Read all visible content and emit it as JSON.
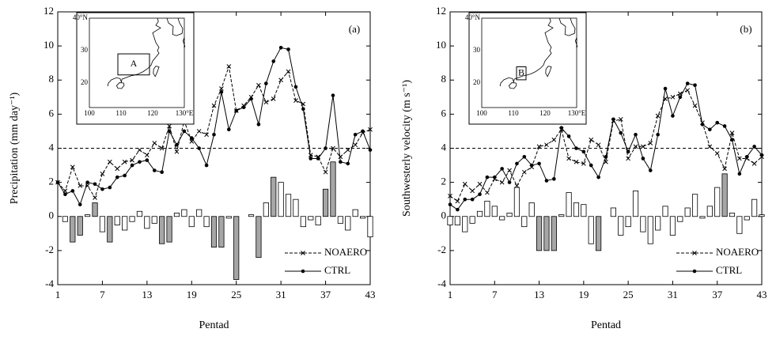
{
  "chart_data": [
    {
      "type": "line_bar",
      "panel_label": "(a)",
      "ylabel": "Precipitation  (mm day⁻¹)",
      "xlabel": "Pentad",
      "xlim": [
        1,
        43
      ],
      "xticks": [
        1,
        7,
        13,
        19,
        25,
        31,
        37,
        43
      ],
      "ylim": [
        -4,
        12
      ],
      "yticks": [
        -4,
        -2,
        0,
        2,
        4,
        6,
        8,
        10,
        12
      ],
      "reference_line": 4,
      "series": [
        {
          "name": "NOAERO",
          "color": "#000000",
          "dashed": true,
          "marker": "x",
          "values": [
            2.0,
            1.5,
            2.9,
            1.8,
            1.8,
            1.1,
            2.5,
            3.2,
            2.8,
            3.2,
            3.3,
            3.9,
            3.6,
            4.3,
            4.0,
            5.3,
            3.8,
            5.6,
            4.4,
            5.0,
            4.8,
            6.5,
            7.5,
            8.8,
            6.2,
            6.5,
            7.0,
            7.7,
            6.7,
            6.9,
            8.0,
            8.5,
            6.8,
            6.6,
            3.6,
            3.5,
            2.6,
            4.0,
            3.5,
            3.9,
            4.2,
            4.9,
            5.1
          ]
        },
        {
          "name": "CTRL",
          "color": "#000000",
          "dashed": false,
          "marker": "circle",
          "values": [
            2.0,
            1.3,
            1.5,
            0.7,
            2.0,
            1.9,
            1.6,
            1.7,
            2.3,
            2.4,
            3.0,
            3.2,
            3.3,
            2.7,
            2.6,
            5.0,
            4.2,
            5.0,
            4.6,
            4.0,
            3.0,
            4.8,
            7.3,
            5.1,
            6.2,
            6.4,
            6.9,
            5.4,
            7.8,
            9.1,
            9.9,
            9.8,
            7.6,
            6.3,
            3.4,
            3.4,
            4.0,
            7.1,
            3.2,
            3.1,
            4.8,
            5.0,
            3.9
          ]
        }
      ],
      "bars": {
        "values": [
          0.0,
          -0.3,
          -1.5,
          -1.1,
          0.1,
          0.8,
          -0.9,
          -1.5,
          -0.5,
          -0.8,
          -0.3,
          0.3,
          -0.7,
          -0.4,
          -1.6,
          -1.5,
          0.2,
          0.4,
          -0.6,
          0.4,
          -0.6,
          -1.8,
          -1.8,
          -0.1,
          -3.7,
          0.0,
          0.1,
          -2.4,
          0.8,
          2.3,
          2.0,
          1.3,
          1.0,
          -0.6,
          -0.2,
          -0.5,
          1.6,
          3.2,
          -0.4,
          -0.8,
          0.4,
          -0.1,
          -1.2
        ],
        "colors": [
          "#ffffff",
          "#ffffff",
          "#a6a6a6",
          "#a6a6a6",
          "#ffffff",
          "#a6a6a6",
          "#ffffff",
          "#a6a6a6",
          "#ffffff",
          "#ffffff",
          "#ffffff",
          "#ffffff",
          "#ffffff",
          "#ffffff",
          "#a6a6a6",
          "#a6a6a6",
          "#ffffff",
          "#ffffff",
          "#ffffff",
          "#ffffff",
          "#ffffff",
          "#a6a6a6",
          "#a6a6a6",
          "#ffffff",
          "#a6a6a6",
          "#ffffff",
          "#ffffff",
          "#a6a6a6",
          "#ffffff",
          "#a6a6a6",
          "#ffffff",
          "#ffffff",
          "#ffffff",
          "#ffffff",
          "#ffffff",
          "#ffffff",
          "#a6a6a6",
          "#a6a6a6",
          "#ffffff",
          "#ffffff",
          "#ffffff",
          "#ffffff",
          "#ffffff"
        ]
      },
      "inset": {
        "lat_labels": [
          "40°N",
          "30",
          "20"
        ],
        "lon_labels": [
          "100",
          "110",
          "120",
          "130°E"
        ],
        "box_label": "A"
      }
    },
    {
      "type": "line_bar",
      "panel_label": "(b)",
      "ylabel": "Southwesterly  velocity  (m  s⁻¹)",
      "xlabel": "Pentad",
      "xlim": [
        1,
        43
      ],
      "xticks": [
        1,
        7,
        13,
        19,
        25,
        31,
        37,
        43
      ],
      "ylim": [
        -4,
        12
      ],
      "yticks": [
        -4,
        -2,
        0,
        2,
        4,
        6,
        8,
        10,
        12
      ],
      "reference_line": 4,
      "series": [
        {
          "name": "NOAERO",
          "color": "#000000",
          "dashed": true,
          "marker": "x",
          "values": [
            1.2,
            0.9,
            1.9,
            1.5,
            1.9,
            1.4,
            2.2,
            2.0,
            2.7,
            1.8,
            2.6,
            2.9,
            4.1,
            4.2,
            4.5,
            5.1,
            3.4,
            3.2,
            3.1,
            4.5,
            4.2,
            3.2,
            5.6,
            5.7,
            3.4,
            4.1,
            4.1,
            4.3,
            5.9,
            6.9,
            7.0,
            7.2,
            7.4,
            6.5,
            5.5,
            4.1,
            3.7,
            2.8,
            4.9,
            3.4,
            3.4,
            3.1,
            3.5
          ]
        },
        {
          "name": "CTRL",
          "color": "#000000",
          "dashed": false,
          "marker": "circle",
          "values": [
            0.7,
            0.4,
            1.0,
            1.0,
            1.3,
            2.3,
            2.3,
            2.8,
            2.0,
            3.1,
            3.5,
            3.0,
            3.1,
            2.1,
            2.2,
            5.2,
            4.7,
            4.0,
            3.8,
            3.0,
            2.3,
            3.5,
            5.7,
            4.9,
            3.8,
            4.8,
            3.4,
            2.7,
            4.8,
            7.5,
            5.9,
            7.0,
            7.8,
            7.7,
            5.4,
            5.1,
            5.5,
            5.3,
            4.5,
            2.5,
            3.5,
            4.1,
            3.6
          ]
        }
      ],
      "bars": {
        "values": [
          -0.5,
          -0.5,
          -0.9,
          -0.4,
          0.3,
          0.9,
          0.6,
          -0.2,
          0.2,
          1.7,
          -0.6,
          0.8,
          -2.0,
          -2.0,
          -2.0,
          0.1,
          1.4,
          0.8,
          0.7,
          -1.6,
          -2.0,
          0.0,
          0.5,
          -1.1,
          -0.6,
          1.5,
          -0.9,
          -1.6,
          -0.8,
          0.6,
          -1.1,
          -0.3,
          0.5,
          1.3,
          -0.1,
          0.6,
          1.7,
          2.5,
          0.2,
          -1.0,
          -0.2,
          1.0,
          0.1
        ],
        "colors": [
          "#ffffff",
          "#ffffff",
          "#ffffff",
          "#ffffff",
          "#ffffff",
          "#ffffff",
          "#ffffff",
          "#ffffff",
          "#ffffff",
          "#ffffff",
          "#ffffff",
          "#ffffff",
          "#a6a6a6",
          "#a6a6a6",
          "#a6a6a6",
          "#ffffff",
          "#ffffff",
          "#ffffff",
          "#ffffff",
          "#ffffff",
          "#a6a6a6",
          "#ffffff",
          "#ffffff",
          "#ffffff",
          "#ffffff",
          "#ffffff",
          "#ffffff",
          "#ffffff",
          "#ffffff",
          "#ffffff",
          "#ffffff",
          "#ffffff",
          "#ffffff",
          "#ffffff",
          "#ffffff",
          "#ffffff",
          "#ffffff",
          "#a6a6a6",
          "#ffffff",
          "#ffffff",
          "#ffffff",
          "#ffffff",
          "#ffffff"
        ]
      },
      "inset": {
        "lat_labels": [
          "40°N",
          "30",
          "20"
        ],
        "lon_labels": [
          "100",
          "110",
          "120",
          "130°E"
        ],
        "box_label": "B"
      }
    }
  ]
}
